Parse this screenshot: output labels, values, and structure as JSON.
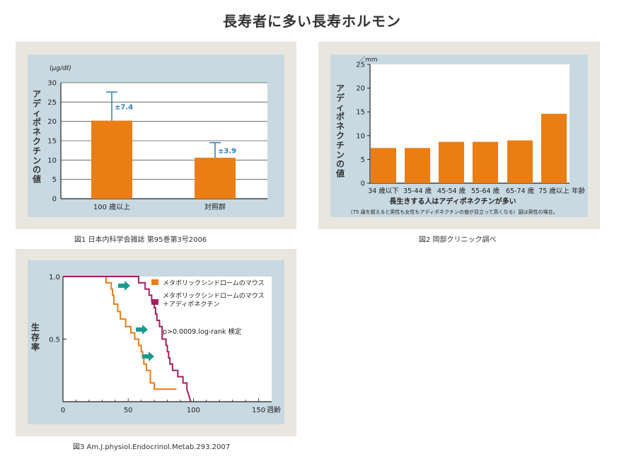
{
  "page": {
    "title": "長寿者に多い長寿ホルモン"
  },
  "chart_data": [
    {
      "type": "bar",
      "unit_label": "(μg/dℓ)",
      "ylabel": "アディポネクチンの値",
      "yticks": [
        "0",
        "5",
        "10",
        "15",
        "20",
        "25",
        "30"
      ],
      "ylim": [
        0,
        30
      ],
      "grid": true,
      "categories": [
        "100 歳以上",
        "対照群"
      ],
      "values": [
        20.2,
        10.6
      ],
      "error": [
        7.4,
        3.9
      ],
      "error_labels": [
        "±7.4",
        "±3.9"
      ],
      "bar_color": "#ea7d14",
      "error_color": "#2f7fb8",
      "caption": "図1  日本内科学会雑誌   第95巻第3号2006"
    },
    {
      "type": "bar",
      "unit_label": "／mm",
      "ylabel": "アディポネクチンの値",
      "yticks": [
        "0",
        "5",
        "10",
        "15",
        "20",
        "25"
      ],
      "ylim": [
        0,
        25
      ],
      "grid": false,
      "categories": [
        "34 歳以下",
        "35-44 歳",
        "45-54 歳",
        "55-64 歳",
        "65-74 歳",
        "75 歳以上"
      ],
      "values": [
        7.4,
        7.4,
        8.7,
        8.7,
        9.0,
        14.6
      ],
      "x_unit": "年齢",
      "bar_color": "#ea7d14",
      "note_title": "長生きする人はアディポネクチンが多い",
      "note_sub": "（75 歳を超えると男性も女性もアディポネクチンの値が目立って高くなる）図は男性の場合。",
      "caption": "図2  岡部クリニック調べ"
    },
    {
      "type": "line",
      "step": true,
      "ylabel": "生存率",
      "yticks": [
        "1.0",
        "0.5"
      ],
      "xticks": [
        "0",
        "50",
        "100",
        "150"
      ],
      "xlim": [
        0,
        160
      ],
      "ylim": [
        0,
        1
      ],
      "x_unit": "週齢",
      "series": [
        {
          "name": "メタボリックシンドロームのマウス",
          "color": "#ea7d14",
          "x": [
            0,
            33,
            33,
            37,
            37,
            38,
            38,
            39,
            39,
            42,
            42,
            44,
            44,
            48,
            48,
            52,
            52,
            55,
            55,
            58,
            58,
            60,
            60,
            61,
            61,
            62,
            62,
            64,
            64,
            67,
            67,
            70,
            70,
            80,
            80,
            87
          ],
          "y": [
            1.0,
            1.0,
            0.95,
            0.95,
            0.9,
            0.9,
            0.85,
            0.85,
            0.78,
            0.78,
            0.72,
            0.72,
            0.66,
            0.66,
            0.6,
            0.6,
            0.55,
            0.55,
            0.5,
            0.5,
            0.45,
            0.45,
            0.4,
            0.4,
            0.35,
            0.35,
            0.3,
            0.3,
            0.25,
            0.25,
            0.15,
            0.15,
            0.1,
            0.1,
            0.1,
            0.1
          ]
        },
        {
          "name": "メタボリックシンドロームのマウス＋アディポネクチン",
          "color": "#a51e62",
          "x": [
            0,
            58,
            58,
            63,
            63,
            66,
            66,
            68,
            68,
            70,
            70,
            71,
            71,
            72,
            72,
            74,
            74,
            76,
            76,
            79,
            79,
            80,
            80,
            81,
            81,
            82,
            82,
            84,
            84,
            88,
            88,
            92,
            92,
            95,
            95,
            98
          ],
          "y": [
            1.0,
            1.0,
            0.95,
            0.95,
            0.9,
            0.9,
            0.85,
            0.85,
            0.8,
            0.8,
            0.75,
            0.75,
            0.7,
            0.7,
            0.65,
            0.65,
            0.6,
            0.6,
            0.5,
            0.5,
            0.45,
            0.45,
            0.4,
            0.4,
            0.35,
            0.35,
            0.3,
            0.3,
            0.25,
            0.25,
            0.2,
            0.2,
            0.15,
            0.15,
            0.1,
            0.0
          ]
        }
      ],
      "annotation": "p>0.0009.log-rank 検定",
      "arrow_color": "#1a9a8e",
      "caption": "図3  Am.J.physiol.Endocrinol.Metab.293.2007"
    }
  ]
}
